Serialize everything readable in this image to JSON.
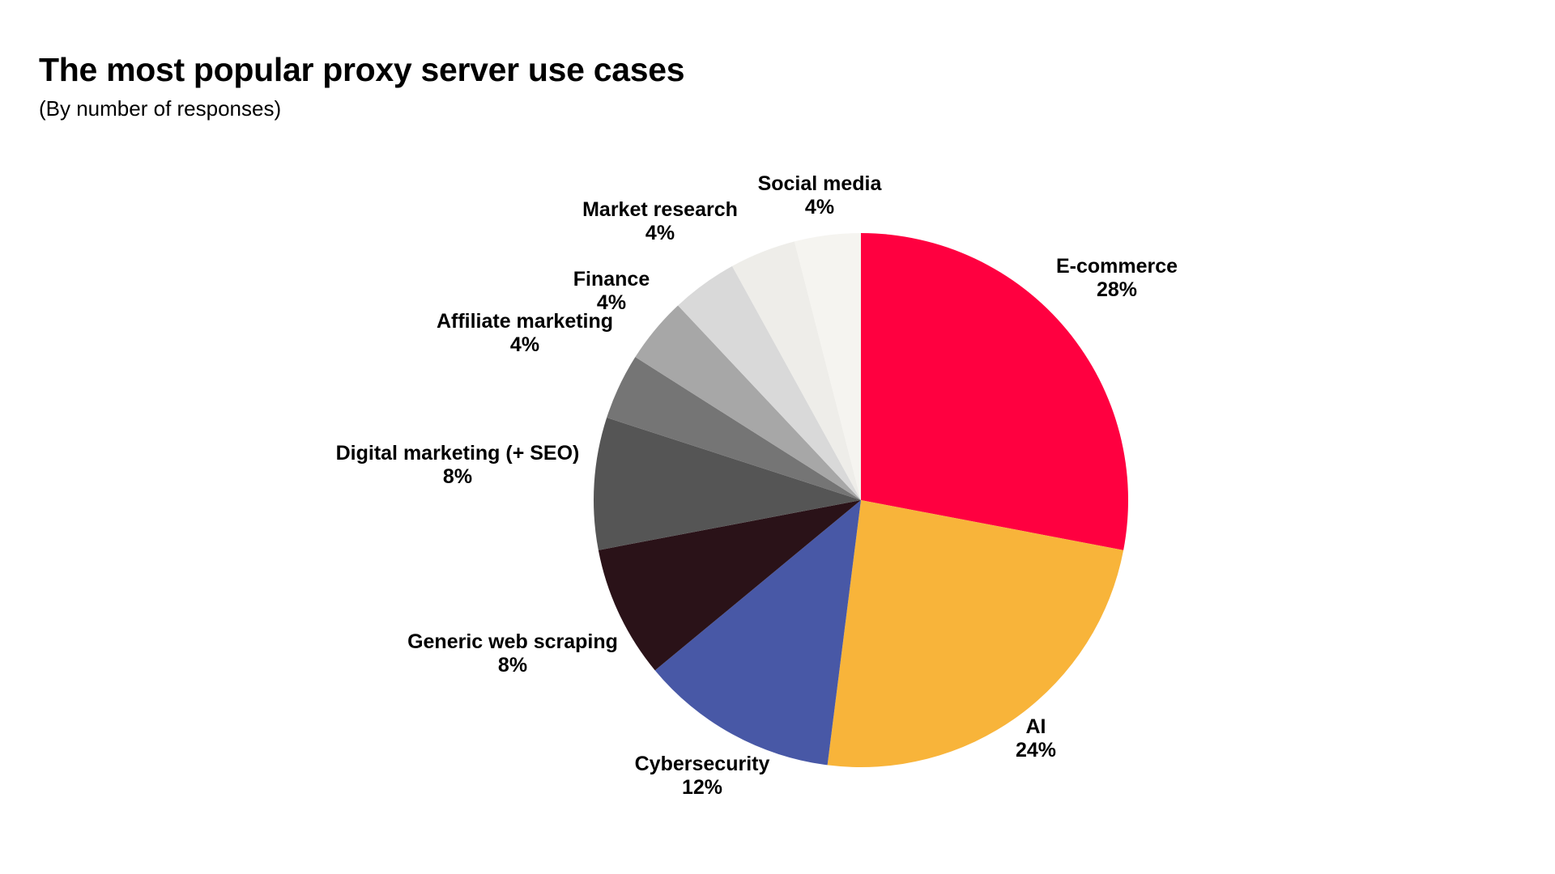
{
  "header": {
    "title": "The most popular proxy server use cases",
    "subtitle": "(By number of responses)"
  },
  "chart_data": {
    "type": "pie",
    "title": "The most popular proxy server use cases",
    "subtitle": "(By number of responses)",
    "start_angle": "12 o'clock",
    "direction": "clockwise",
    "slices": [
      {
        "label": "E-commerce",
        "value": 28,
        "value_label": "28%",
        "color": "#FF0040"
      },
      {
        "label": "AI",
        "value": 24,
        "value_label": "24%",
        "color": "#F8B43A"
      },
      {
        "label": "Cybersecurity",
        "value": 12,
        "value_label": "12%",
        "color": "#4858A6"
      },
      {
        "label": "Generic web scraping",
        "value": 8,
        "value_label": "8%",
        "color": "#2A1218"
      },
      {
        "label": "Digital marketing (+ SEO)",
        "value": 8,
        "value_label": "8%",
        "color": "#555555"
      },
      {
        "label": "Affiliate marketing",
        "value": 4,
        "value_label": "4%",
        "color": "#757575"
      },
      {
        "label": "Finance",
        "value": 4,
        "value_label": "4%",
        "color": "#A7A7A7"
      },
      {
        "label": "Market research",
        "value": 4,
        "value_label": "4%",
        "color": "#D9D9D9"
      },
      {
        "label": "Social media",
        "value": 4,
        "value_label": "4%",
        "color": "#EEEDE9"
      },
      {
        "label": "",
        "value": 4,
        "value_label": "",
        "color": "#F5F4F0"
      }
    ]
  }
}
